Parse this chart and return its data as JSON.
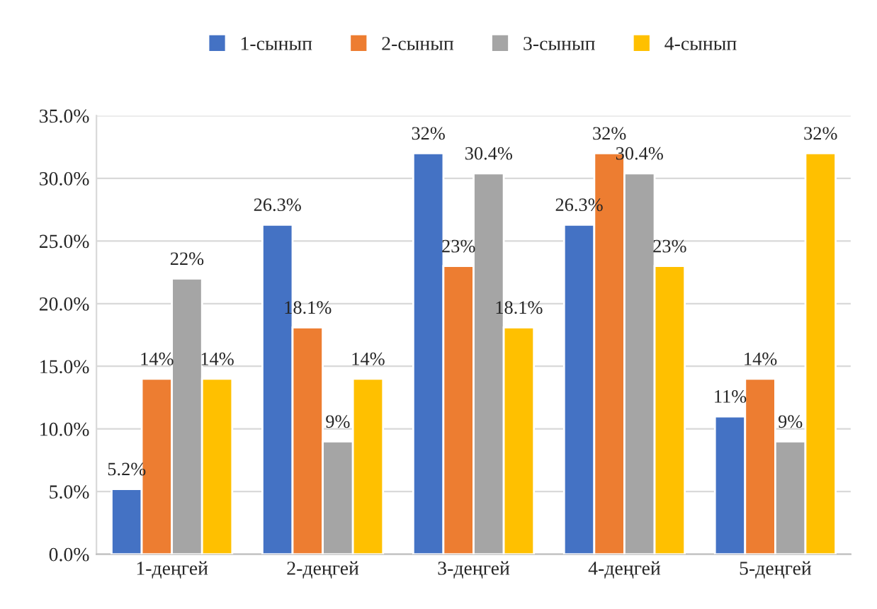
{
  "chart_data": {
    "type": "bar",
    "categories": [
      "1-деңгей",
      "2-деңгей",
      "3-деңгей",
      "4-деңгей",
      "5-деңгей"
    ],
    "series": [
      {
        "name": "1-сынып",
        "color": "#4472c4",
        "values": [
          5.2,
          26.3,
          32,
          26.3,
          11
        ],
        "value_labels": [
          "5.2%",
          "26.3%",
          "32%",
          "26.3%",
          "11%"
        ]
      },
      {
        "name": "2-сынып",
        "color": "#ed7d31",
        "values": [
          14,
          18.1,
          23,
          32,
          14
        ],
        "value_labels": [
          "14%",
          "18.1%",
          "23%",
          "32%",
          "14%"
        ]
      },
      {
        "name": "3-сынып",
        "color": "#a5a5a5",
        "values": [
          22,
          9,
          30.4,
          30.4,
          9
        ],
        "value_labels": [
          "22%",
          "9%",
          "30.4%",
          "30.4%",
          "9%"
        ]
      },
      {
        "name": "4-сынып",
        "color": "#ffc000",
        "values": [
          14,
          14,
          18.1,
          23,
          32
        ],
        "value_labels": [
          "14%",
          "14%",
          "18.1%",
          "23%",
          "32%"
        ]
      }
    ],
    "ylim": [
      0,
      35
    ],
    "yticks": [
      {
        "value": 0,
        "label": "0.0%"
      },
      {
        "value": 5,
        "label": "5.0%"
      },
      {
        "value": 10,
        "label": "10.0%"
      },
      {
        "value": 15,
        "label": "15.0%"
      },
      {
        "value": 20,
        "label": "20.0%"
      },
      {
        "value": 25,
        "label": "25.0%"
      },
      {
        "value": 30,
        "label": "30.0%"
      },
      {
        "value": 35,
        "label": "35.0%"
      }
    ],
    "grid": "y",
    "legend": "top"
  }
}
